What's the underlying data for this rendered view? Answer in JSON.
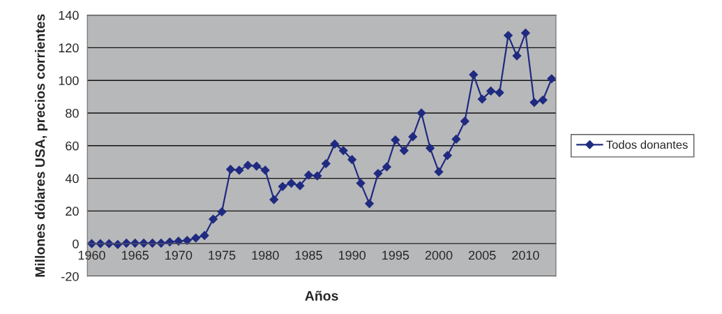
{
  "chart_data": {
    "type": "line",
    "xlabel": "Años",
    "ylabel": "Millones dólares USA, precios corrientes",
    "categories": [
      "1960",
      null,
      null,
      null,
      null,
      "1965",
      null,
      null,
      null,
      null,
      "1970",
      null,
      null,
      null,
      null,
      "1975",
      null,
      null,
      null,
      null,
      "1980",
      null,
      null,
      null,
      null,
      "1985",
      null,
      null,
      null,
      null,
      "1990",
      null,
      null,
      null,
      null,
      "1995",
      null,
      null,
      null,
      null,
      "2000",
      null,
      null,
      null,
      null,
      "2005",
      null,
      null,
      null,
      null,
      "2010",
      null,
      null,
      null
    ],
    "series": [
      {
        "name": "Todos donantes",
        "color": "#1f2a80",
        "values": [
          0,
          0,
          0,
          -0.5,
          0.3,
          0.3,
          0.3,
          0.3,
          0.3,
          1,
          1.5,
          2,
          3.5,
          5,
          15,
          19.5,
          45.5,
          45,
          48,
          47.5,
          45,
          27,
          35,
          37,
          35.5,
          42,
          41.5,
          49,
          61,
          57,
          51.5,
          37,
          24.5,
          43,
          47,
          63.5,
          57,
          65.5,
          80,
          58.5,
          44,
          54,
          64,
          75,
          103.5,
          88.5,
          93.5,
          92.5,
          127.5,
          115,
          129,
          86.5,
          88,
          101
        ]
      }
    ],
    "ylim": [
      -20,
      140
    ],
    "yticks": [
      -20,
      0,
      20,
      40,
      60,
      80,
      100,
      120,
      140
    ],
    "grid": "y",
    "legend": "right",
    "marker": "diamond",
    "line_style": "solid"
  }
}
